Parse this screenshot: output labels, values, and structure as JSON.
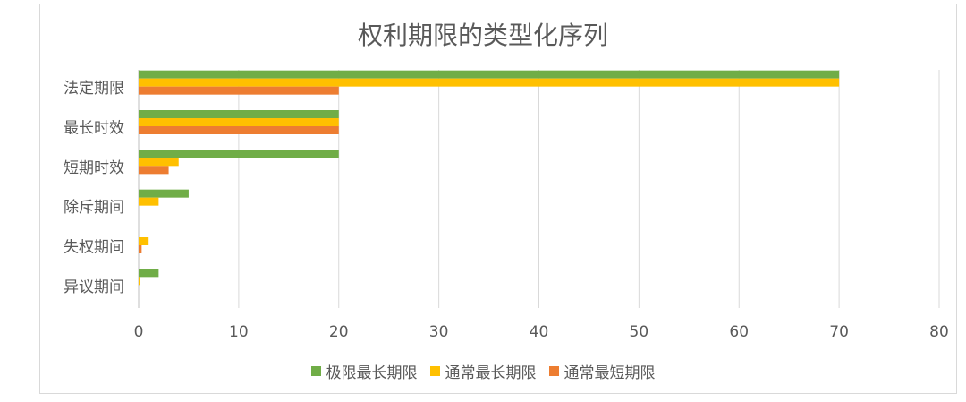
{
  "chart_data": {
    "type": "bar",
    "orientation": "horizontal",
    "title": "权利期限的类型化序列",
    "categories": [
      "法定期限",
      "最长时效",
      "短期时效",
      "除斥期间",
      "失权期间",
      "异议期间"
    ],
    "series": [
      {
        "name": "极限最长期限",
        "color": "#70ad47",
        "values": [
          70,
          20,
          20,
          5,
          0,
          2
        ]
      },
      {
        "name": "通常最长期限",
        "color": "#ffc000",
        "values": [
          70,
          20,
          4,
          2,
          1,
          0.1
        ]
      },
      {
        "name": "通常最短期限",
        "color": "#ed7d31",
        "values": [
          20,
          20,
          3,
          0,
          0.3,
          0
        ]
      }
    ],
    "xlim": [
      0,
      80
    ],
    "xticks": [
      "0",
      "10",
      "20",
      "30",
      "40",
      "50",
      "60",
      "70",
      "80"
    ],
    "grid": true,
    "legend": "bottom"
  }
}
